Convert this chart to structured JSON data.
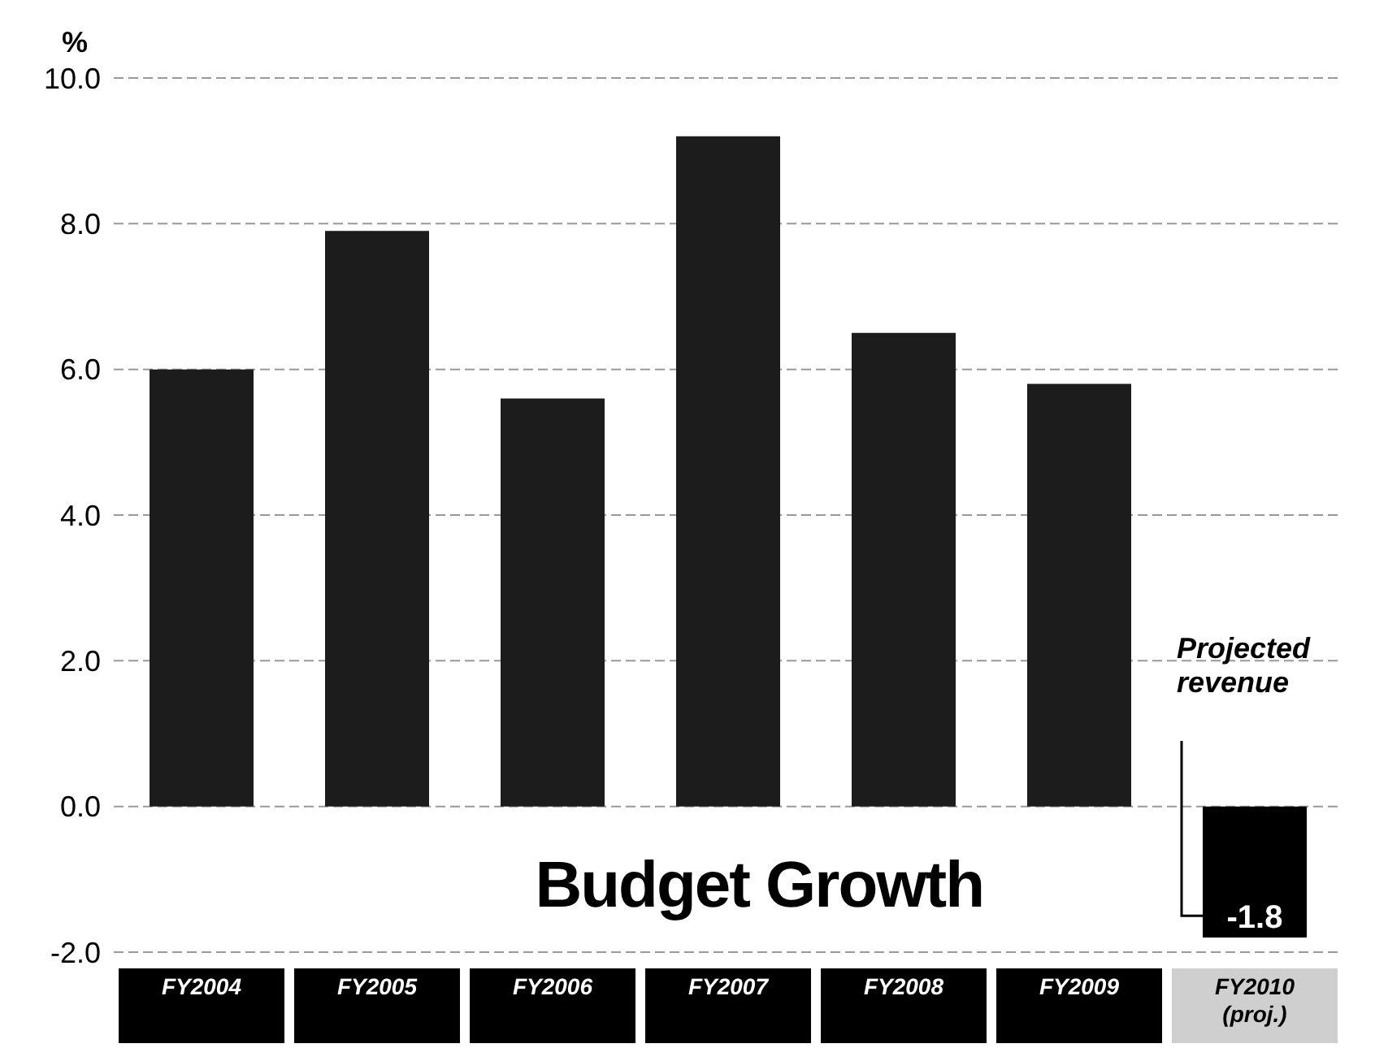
{
  "chart_data": {
    "type": "bar",
    "title": "Budget Growth",
    "ylabel": "%",
    "categories": [
      "FY2004",
      "FY2005",
      "FY2006",
      "FY2007",
      "FY2008",
      "FY2009",
      "FY2010 (proj.)"
    ],
    "values": [
      6.0,
      7.9,
      5.6,
      9.2,
      6.5,
      5.8,
      -1.8
    ],
    "colors": [
      "#1c1c1c",
      "#1c1c1c",
      "#1c1c1c",
      "#1c1c1c",
      "#1c1c1c",
      "#1c1c1c",
      "#000000"
    ],
    "value_labels": [
      null,
      null,
      null,
      null,
      null,
      null,
      "-1.8"
    ],
    "annotations": [
      "Projected revenue"
    ],
    "ylim": [
      -2,
      10
    ],
    "yticks": [
      {
        "value": -2,
        "label": "-2.0"
      },
      {
        "value": 0,
        "label": "0.0"
      },
      {
        "value": 2,
        "label": "2.0"
      },
      {
        "value": 4,
        "label": "4.0"
      },
      {
        "value": 6,
        "label": "6.0"
      },
      {
        "value": 8,
        "label": "8.0"
      },
      {
        "value": 10,
        "label": "10.0"
      }
    ],
    "grid": "y"
  }
}
